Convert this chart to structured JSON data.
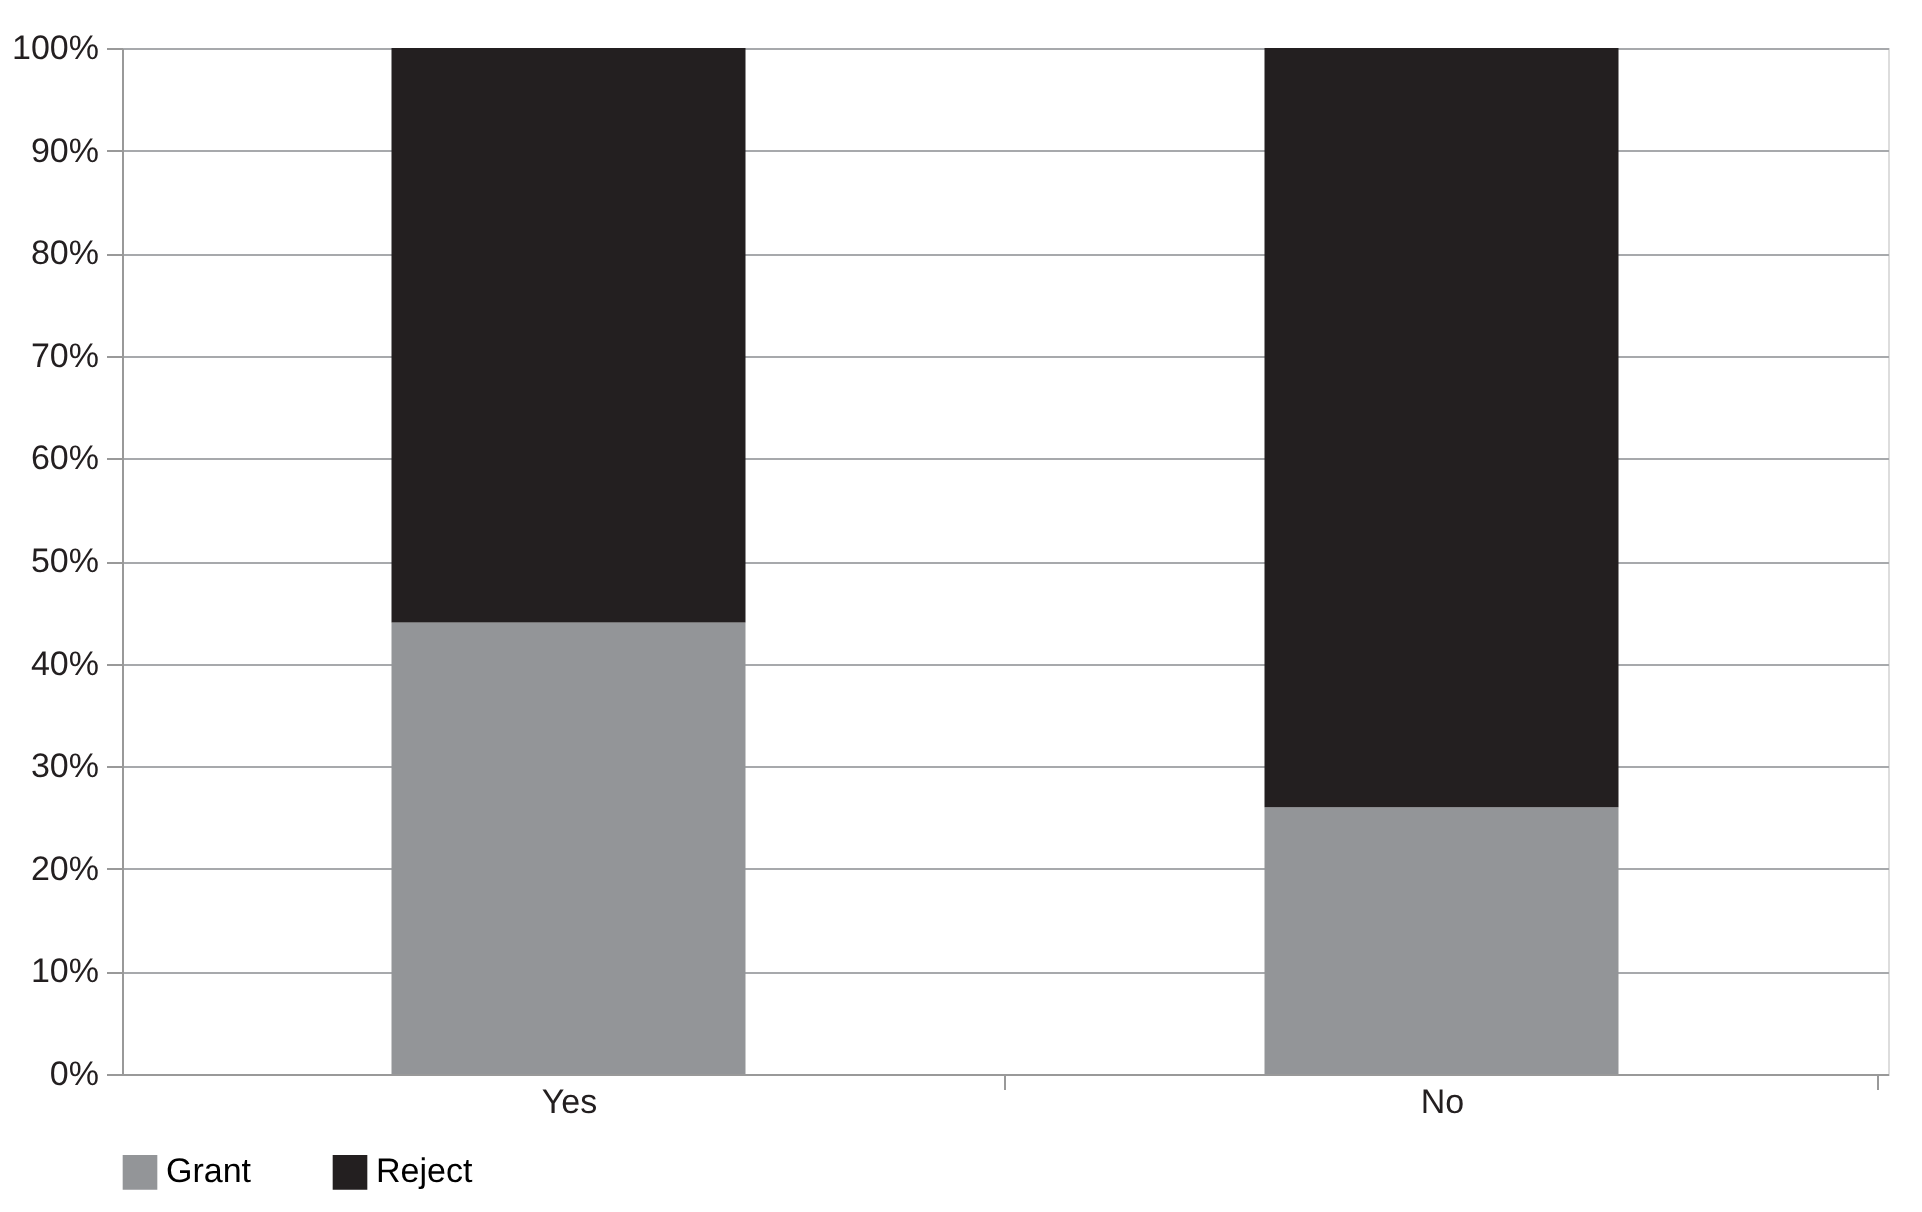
{
  "chart_data": {
    "type": "bar",
    "stacked": true,
    "categories": [
      "Yes",
      "No"
    ],
    "series": [
      {
        "name": "Grant",
        "color": "#939598",
        "values": [
          44,
          26
        ]
      },
      {
        "name": "Reject",
        "color": "#231f20",
        "values": [
          56,
          74
        ]
      }
    ],
    "ylim": [
      0,
      100
    ],
    "yticks": [
      {
        "value": 0,
        "label": "0%"
      },
      {
        "value": 10,
        "label": "10%"
      },
      {
        "value": 20,
        "label": "20%"
      },
      {
        "value": 30,
        "label": "30%"
      },
      {
        "value": 40,
        "label": "40%"
      },
      {
        "value": 50,
        "label": "50%"
      },
      {
        "value": 60,
        "label": "60%"
      },
      {
        "value": 70,
        "label": "70%"
      },
      {
        "value": 80,
        "label": "80%"
      },
      {
        "value": 90,
        "label": "90%"
      },
      {
        "value": 100,
        "label": "100%"
      }
    ],
    "grid": "y",
    "legend": "bottom"
  }
}
